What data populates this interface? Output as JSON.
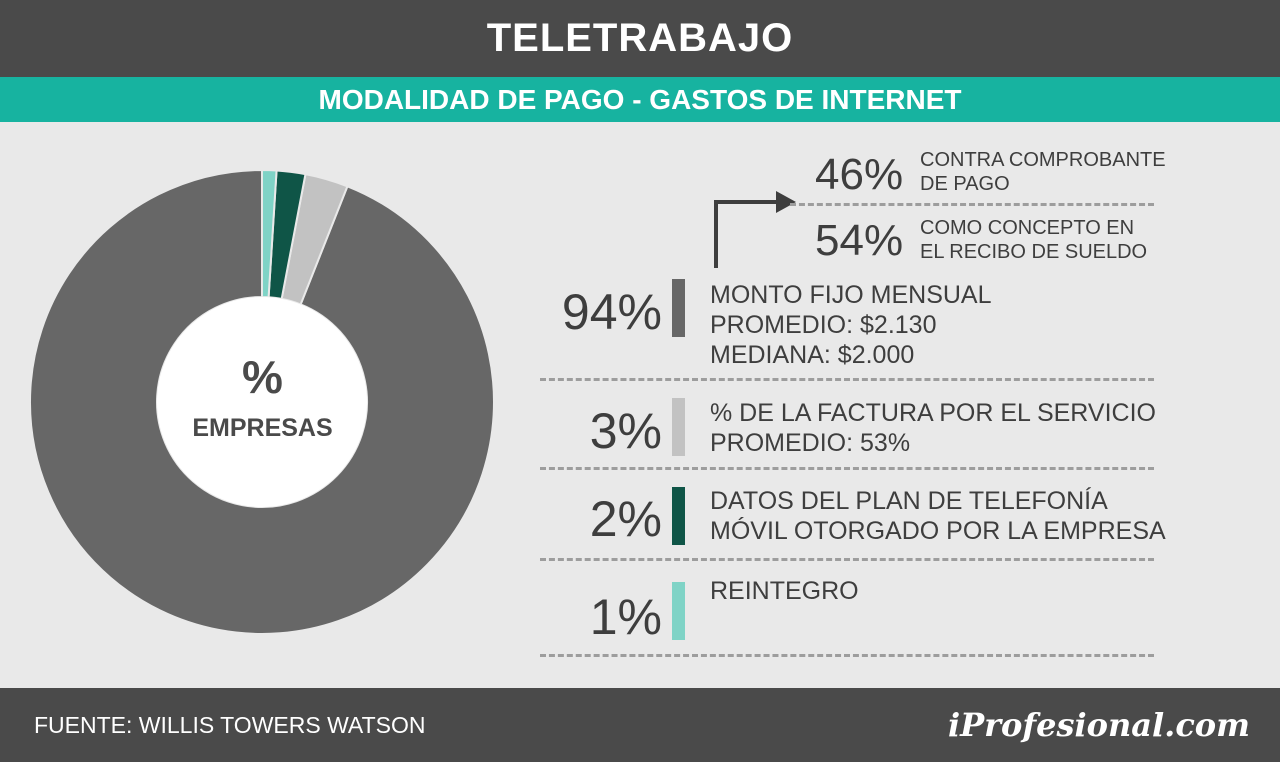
{
  "header": {
    "title": "TELETRABAJO",
    "subtitle": "MODALIDAD DE PAGO - GASTOS DE INTERNET"
  },
  "center": {
    "pct": "%",
    "label": "EMPRESAS"
  },
  "chart_data": {
    "type": "pie",
    "categories": [
      "MONTO FIJO MENSUAL",
      "% DE LA FACTURA POR EL SERVICIO",
      "DATOS DEL PLAN DE TELEFONÍA MÓVIL OTORGADO POR LA EMPRESA",
      "REINTEGRO"
    ],
    "values": [
      94,
      3,
      2,
      1
    ],
    "colors": [
      "#676767",
      "#c2c2c2",
      "#0f5547",
      "#7fd3c6"
    ],
    "donut": true
  },
  "items": [
    {
      "pct": "94%",
      "lines": [
        "MONTO FIJO MENSUAL",
        "PROMEDIO: $2.130",
        "MEDIANA: $2.000"
      ]
    },
    {
      "pct": "3%",
      "lines": [
        "% DE LA FACTURA POR EL SERVICIO",
        "PROMEDIO: 53%"
      ]
    },
    {
      "pct": "2%",
      "lines": [
        "DATOS DEL PLAN DE TELEFONÍA",
        "MÓVIL OTORGADO POR LA EMPRESA"
      ]
    },
    {
      "pct": "1%",
      "lines": [
        "REINTEGRO"
      ]
    }
  ],
  "sub_items": [
    {
      "pct": "46%",
      "lines": [
        "CONTRA COMPROBANTE",
        "DE PAGO"
      ]
    },
    {
      "pct": "54%",
      "lines": [
        "COMO CONCEPTO EN",
        "EL RECIBO DE SUELDO"
      ]
    }
  ],
  "footer": {
    "source": "FUENTE: WILLIS TOWERS WATSON",
    "logo": "iProfesional.com"
  }
}
